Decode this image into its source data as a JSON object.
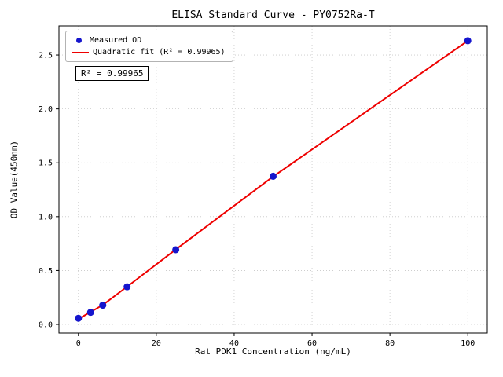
{
  "chart_data": {
    "type": "scatter",
    "title": "ELISA Standard Curve - PY0752Ra-T",
    "xlabel": "Rat PDK1 Concentration (ng/mL)",
    "ylabel": "OD Value(450nm)",
    "annotation": "R² = 0.99965",
    "xlim": [
      -5,
      105
    ],
    "ylim": [
      -0.08,
      2.77
    ],
    "xticks": [
      0,
      20,
      40,
      60,
      80,
      100
    ],
    "yticks": [
      0.0,
      0.5,
      1.0,
      1.5,
      2.0,
      2.5
    ],
    "grid": true,
    "grid_style": "dotted",
    "legend_position": "upper left",
    "colors": {
      "points": "#1515cd",
      "fit_line": "#ee0000",
      "grid": "#c8c8c8",
      "spine": "#000000"
    },
    "series": [
      {
        "name": "Measured OD",
        "type": "scatter",
        "color": "#1515cd",
        "x": [
          0,
          3.125,
          6.25,
          12.5,
          25,
          50,
          100
        ],
        "y": [
          0.057,
          0.112,
          0.178,
          0.349,
          0.693,
          1.375,
          2.632
        ]
      },
      {
        "name": "Quadratic fit (R² = 0.99965)",
        "type": "line",
        "color": "#ee0000",
        "x": [
          0,
          3.125,
          6.25,
          12.5,
          25,
          50,
          100
        ],
        "y": [
          0.05,
          0.115,
          0.18,
          0.35,
          0.695,
          1.372,
          2.632
        ]
      }
    ]
  }
}
